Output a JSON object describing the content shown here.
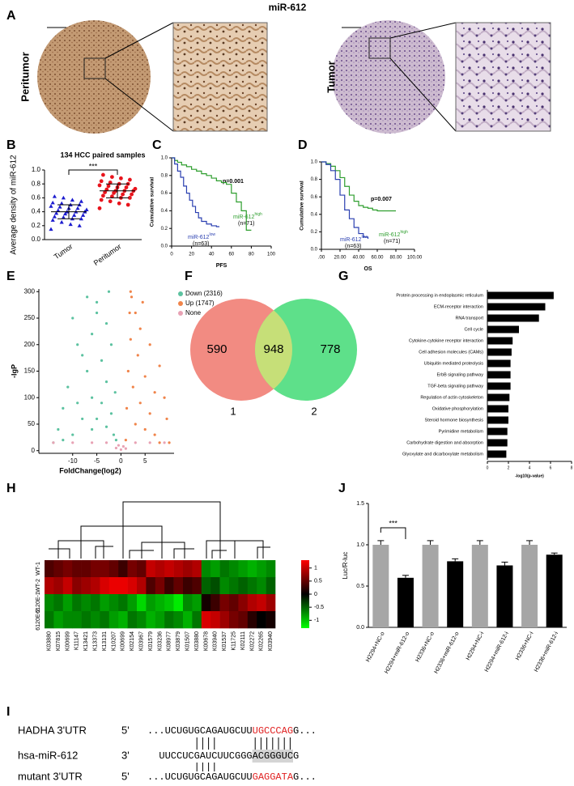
{
  "figure_title": "miR-612",
  "panel_labels": [
    "A",
    "B",
    "C",
    "D",
    "E",
    "F",
    "G",
    "H",
    "I",
    "J"
  ],
  "histology": {
    "left_label": "Peritumor",
    "right_label": "Tumor"
  },
  "chart_data": [
    {
      "type": "dot",
      "title": "134 HCC  paired samples",
      "ylabel": "Average density of miR-612",
      "annotation": "***",
      "categories": [
        "Tumor",
        "Peritumor"
      ],
      "ylim": [
        0,
        1
      ],
      "yticks": [
        {
          "value": 0,
          "label": "0.0"
        },
        {
          "value": 0.2,
          "label": "0.2"
        },
        {
          "value": 0.4,
          "label": "0.4"
        },
        {
          "value": 0.6,
          "label": "0.6"
        },
        {
          "value": 0.8,
          "label": "0.8"
        },
        {
          "value": 1,
          "label": "1.0"
        }
      ],
      "groups": [
        {
          "color": "#1c1ccf",
          "marker": "triangle",
          "mean": 0.4,
          "sd": 0.1,
          "values": [
            0.15,
            0.2,
            0.22,
            0.25,
            0.28,
            0.3,
            0.3,
            0.32,
            0.33,
            0.35,
            0.35,
            0.37,
            0.38,
            0.4,
            0.4,
            0.4,
            0.42,
            0.43,
            0.45,
            0.45,
            0.47,
            0.48,
            0.5,
            0.5,
            0.52,
            0.53,
            0.55,
            0.57,
            0.6,
            0.62
          ]
        },
        {
          "color": "#e8141c",
          "marker": "circle",
          "mean": 0.7,
          "sd": 0.1,
          "values": [
            0.45,
            0.5,
            0.52,
            0.55,
            0.57,
            0.6,
            0.6,
            0.62,
            0.63,
            0.65,
            0.65,
            0.67,
            0.68,
            0.7,
            0.7,
            0.7,
            0.72,
            0.73,
            0.75,
            0.75,
            0.77,
            0.78,
            0.8,
            0.8,
            0.82,
            0.84,
            0.86,
            0.88,
            0.9,
            0.93
          ]
        }
      ]
    },
    {
      "type": "km",
      "xlabel": "PFS",
      "ylabel": "Cumulative survival",
      "annotation": "p=0.001",
      "xlim": [
        0,
        100
      ],
      "xticks": [
        0,
        20,
        40,
        60,
        80,
        100
      ],
      "ylim": [
        0,
        1
      ],
      "yticks": [
        {
          "value": 0,
          "label": "0.0"
        },
        {
          "value": 0.2,
          "label": "0.2"
        },
        {
          "value": 0.4,
          "label": "0.4"
        },
        {
          "value": 0.6,
          "label": "0.6"
        },
        {
          "value": 0.8,
          "label": "0.8"
        },
        {
          "value": 1,
          "label": "1.0"
        }
      ],
      "series": [
        {
          "name": "miR-612",
          "sup": "high",
          "n": "(n=71)",
          "color": "#2e9e2e",
          "x": [
            0,
            3,
            6,
            10,
            15,
            20,
            25,
            30,
            35,
            40,
            45,
            50,
            55,
            60,
            65,
            70,
            75,
            80
          ],
          "values": [
            1,
            0.97,
            0.95,
            0.92,
            0.9,
            0.87,
            0.85,
            0.82,
            0.8,
            0.77,
            0.74,
            0.72,
            0.7,
            0.6,
            0.5,
            0.4,
            0.18,
            0.18
          ]
        },
        {
          "name": "miR-612",
          "sup": "low",
          "n": "(n=63)",
          "color": "#2a3fb0",
          "x": [
            0,
            3,
            6,
            9,
            12,
            15,
            18,
            21,
            24,
            27,
            30,
            35,
            40,
            45,
            48
          ],
          "values": [
            1,
            0.93,
            0.85,
            0.78,
            0.68,
            0.6,
            0.52,
            0.45,
            0.38,
            0.32,
            0.28,
            0.25,
            0.23,
            0.22,
            0.22
          ]
        }
      ]
    },
    {
      "type": "km",
      "xlabel": "OS",
      "ylabel": "Cumulative survival",
      "annotation": "p=0.007",
      "xlim": [
        0,
        100
      ],
      "xticks": [
        {
          "value": 0,
          "label": ".00"
        },
        {
          "value": 20,
          "label": "20.00"
        },
        {
          "value": 40,
          "label": "40.00"
        },
        {
          "value": 60,
          "label": "60.00"
        },
        {
          "value": 80,
          "label": "80.00"
        },
        {
          "value": 100,
          "label": "100.00"
        }
      ],
      "ylim": [
        0,
        1
      ],
      "yticks": [
        {
          "value": 0,
          "label": "0.0"
        },
        {
          "value": 0.2,
          "label": "0.2"
        },
        {
          "value": 0.4,
          "label": "0.4"
        },
        {
          "value": 0.6,
          "label": "0.6"
        },
        {
          "value": 0.8,
          "label": "0.8"
        },
        {
          "value": 1,
          "label": "1.0"
        }
      ],
      "series": [
        {
          "name": "miR-612",
          "sup": "high",
          "n": "(n=71)",
          "color": "#2e9e2e",
          "x": [
            0,
            5,
            10,
            15,
            20,
            25,
            30,
            35,
            40,
            45,
            50,
            55,
            60,
            70,
            80
          ],
          "values": [
            1,
            0.98,
            0.95,
            0.9,
            0.82,
            0.72,
            0.62,
            0.55,
            0.5,
            0.48,
            0.47,
            0.45,
            0.44,
            0.44,
            0.44
          ]
        },
        {
          "name": "miR-612",
          "sup": "low",
          "n": "(n=63)",
          "color": "#2a3fb0",
          "x": [
            0,
            5,
            10,
            15,
            20,
            25,
            30,
            35,
            40,
            45,
            50
          ],
          "values": [
            1,
            0.97,
            0.9,
            0.8,
            0.62,
            0.45,
            0.35,
            0.25,
            0.18,
            0.14,
            0.12
          ]
        }
      ]
    },
    {
      "type": "volcano",
      "xlabel": "FoldChange(log2)",
      "ylabel": "-lgP",
      "xlim": [
        -17,
        11
      ],
      "xticks": [
        -10,
        -5,
        0,
        5
      ],
      "ylim": [
        -5,
        305
      ],
      "yticks": [
        0,
        50,
        100,
        150,
        200,
        250,
        300
      ],
      "series": [
        {
          "name": "Down (2316)",
          "color": "#5cc2a0",
          "x": [
            -14,
            -13,
            -12,
            -11,
            -10,
            -9,
            -8,
            -7,
            -7,
            -6,
            -6,
            -5,
            -5,
            -4,
            -4,
            -3,
            -3,
            -2.5,
            -2,
            -2,
            -1.5,
            -1.2,
            -1,
            -8,
            -10,
            -12,
            -5,
            -3,
            -6,
            -9
          ],
          "values": [
            15,
            40,
            80,
            120,
            250,
            200,
            180,
            290,
            150,
            100,
            220,
            260,
            60,
            170,
            90,
            130,
            45,
            300,
            70,
            200,
            30,
            110,
            20,
            60,
            30,
            20,
            280,
            240,
            40,
            90
          ]
        },
        {
          "name": "Up (1747)",
          "color": "#f0844a",
          "x": [
            1,
            1.2,
            1.5,
            2,
            2,
            2.5,
            3,
            3,
            3.5,
            4,
            4,
            5,
            5,
            6,
            6,
            7,
            7,
            8,
            8,
            9,
            9.5,
            10,
            1.8,
            2.2,
            4.5
          ],
          "values": [
            20,
            80,
            150,
            300,
            210,
            120,
            260,
            50,
            180,
            90,
            230,
            140,
            40,
            200,
            70,
            110,
            30,
            160,
            15,
            100,
            60,
            15,
            260,
            290,
            280
          ]
        },
        {
          "name": "None",
          "color": "#e8a2b4",
          "x": [
            -1,
            -0.5,
            0,
            0.5,
            1,
            -14,
            -10,
            -6,
            -3,
            3,
            6,
            9
          ],
          "values": [
            5,
            10,
            2,
            8,
            4,
            15,
            15,
            15,
            15,
            15,
            15,
            15
          ]
        }
      ]
    },
    {
      "type": "venn",
      "sets": [
        {
          "label": "1",
          "value": 590,
          "color": "#f28b82"
        },
        {
          "label": "2",
          "value": 778,
          "color": "#5ee08a"
        }
      ],
      "intersection": {
        "value": 948,
        "color": "#c6df78"
      }
    },
    {
      "type": "hbar",
      "xlabel": "-log10(p-value)",
      "color": "#000000",
      "xlim": [
        0,
        8
      ],
      "xticks": [
        0,
        2,
        4,
        6,
        8
      ],
      "categories": [
        "Protein processing in endoplasmic reticulum",
        "ECM-receptor interaction",
        "RNA transport",
        "Cell cycle",
        "Cytokine-cytokine receptor interaction",
        "Cell adhesion molecules (CAMs)",
        "Ubiquitin mediated proteolysis",
        "ErbB signaling pathway",
        "TGF-beta signaling pathway",
        "Regulation of actin cytoskeleton",
        "Oxidative phosphorylation",
        "Steroid hormone biosynthesis",
        "Pyrimidine metabolism",
        "Carbohydrate digestion and absorption",
        "Glyoxylate and dicarboxylate metabolism"
      ],
      "values": [
        6.3,
        5.5,
        4.9,
        3.0,
        2.4,
        2.3,
        2.2,
        2.2,
        2.2,
        2.1,
        2.0,
        2.0,
        1.9,
        1.9,
        1.8
      ]
    },
    {
      "type": "heatmap",
      "rows": [
        "WT-1",
        "WT-2",
        "6120E-1",
        "6120E-2"
      ],
      "columns": [
        "K03880",
        "K07815",
        "K00699",
        "K11147",
        "K13421",
        "K13373",
        "K13131",
        "K10207",
        "K00699",
        "K02154",
        "K03967",
        "K01579",
        "K03236",
        "K08977",
        "K03879",
        "K01507",
        "K03880",
        "K00678",
        "K03940",
        "K01537",
        "K11725",
        "K02111",
        "K02272",
        "K02265",
        "K03940"
      ],
      "values": [
        [
          0.4,
          0.5,
          0.6,
          0.5,
          0.5,
          0.6,
          0.6,
          0.5,
          0.3,
          0.6,
          0.5,
          1.0,
          0.9,
          1.0,
          0.9,
          0.8,
          0.9,
          -0.7,
          -0.8,
          -0.6,
          -0.7,
          -0.8,
          -0.9,
          -0.8,
          -0.7
        ],
        [
          0.9,
          0.8,
          1.0,
          0.7,
          0.8,
          0.9,
          1.1,
          1.2,
          1.2,
          1.1,
          0.9,
          0.4,
          0.6,
          0.3,
          0.5,
          0.3,
          0.4,
          -0.5,
          -0.4,
          -0.7,
          -0.6,
          -0.5,
          -0.6,
          -0.7,
          -0.5
        ],
        [
          -0.7,
          -0.6,
          -0.8,
          -0.6,
          -0.7,
          -0.6,
          -0.8,
          -0.7,
          -0.6,
          -0.8,
          -1.1,
          -0.8,
          -0.9,
          -1.0,
          -1.2,
          -0.7,
          -0.8,
          0.1,
          0.3,
          0.6,
          0.5,
          0.7,
          0.9,
          1.0,
          0.8
        ],
        [
          -0.6,
          -0.8,
          -0.7,
          -0.7,
          -0.6,
          -0.7,
          -0.6,
          -0.8,
          -0.9,
          -0.6,
          -0.7,
          -0.9,
          -0.8,
          -0.6,
          -0.7,
          -0.9,
          -0.6,
          1.1,
          1.0,
          0.8,
          0.6,
          0.5,
          0.2,
          0.0,
          0.1
        ]
      ],
      "colormap": [
        "#00ff00",
        "#000000",
        "#ff0000"
      ],
      "zlim": [
        -1.3,
        1.3
      ],
      "zticks": [
        1,
        0.5,
        0,
        -0.5,
        -1
      ]
    },
    {
      "type": "bar_err",
      "ylabel": "Luc/R-luc",
      "annotation": "***",
      "categories": [
        "H2294+NC-o",
        "H2294+miR-612-o",
        "H2336+NC-o",
        "H2336+miR-612-o",
        "H2294+NC-i",
        "H2294+miR-612-i",
        "H2336+NC-i",
        "H2336+miR-612-i"
      ],
      "values": [
        1.0,
        0.6,
        1.0,
        0.8,
        1.0,
        0.75,
        1.0,
        0.88
      ],
      "errors": [
        0.05,
        0.03,
        0.05,
        0.03,
        0.05,
        0.04,
        0.05,
        0.02
      ],
      "colors": [
        "#a6a6a6",
        "#000000",
        "#a6a6a6",
        "#000000",
        "#a6a6a6",
        "#000000",
        "#a6a6a6",
        "#000000"
      ],
      "ylim": [
        0,
        1.5
      ],
      "yticks": [
        {
          "value": 0,
          "label": "0.0"
        },
        {
          "value": 0.5,
          "label": "0.5"
        },
        {
          "value": 1,
          "label": "1.0"
        },
        {
          "value": 1.5,
          "label": "1.5"
        }
      ]
    }
  ],
  "sequence": {
    "rows": [
      {
        "name": "HADHA 3'UTR",
        "end": "5'",
        "parts": [
          {
            "text": "...UCUGUGCAGAUGCUU"
          },
          {
            "text": "UGCCCAG",
            "color": "#e02020"
          },
          {
            "text": "G..."
          }
        ]
      },
      {
        "name": "hsa-miR-612",
        "end": "3'",
        "parts": [
          {
            "text": "UUCCUCGAUCUUCGGG"
          },
          {
            "text": "ACGGGUC",
            "highlight": "#d4d4d4"
          },
          {
            "text": "G"
          }
        ]
      },
      {
        "name": "mutant 3'UTR",
        "end": "5'",
        "parts": [
          {
            "text": "...UCUGUGCAGAUGCUU"
          },
          {
            "text": "GAGGATA",
            "color": "#e02020"
          },
          {
            "text": "G..."
          }
        ]
      }
    ]
  }
}
